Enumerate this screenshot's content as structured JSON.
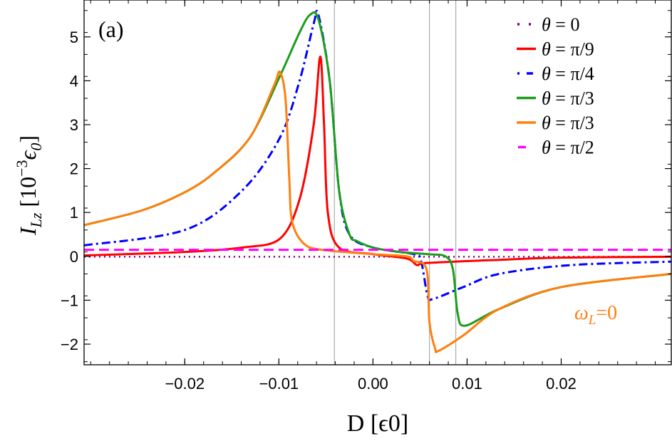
{
  "chart_data": {
    "type": "line",
    "panel_label": "(a)",
    "xlabel": "D [ϵ0]",
    "xlabel_main": "D [",
    "xlabel_sym": "ϵ",
    "xlabel_sub": "0",
    "xlabel_end": "]",
    "ylabel_main": "I",
    "ylabel_sub": "Lz",
    "ylabel_bracket": " [10",
    "ylabel_exp": "−3",
    "ylabel_unit": "ϵ",
    "ylabel_unit_sub": "0",
    "ylabel_close": "]",
    "xlim": [
      -0.0307,
      0.0317
    ],
    "ylim": [
      -2.47,
      5.84
    ],
    "xticks": [
      -0.02,
      -0.01,
      0.0,
      0.01,
      0.02
    ],
    "xtick_labels": [
      "−0.02",
      "−0.01",
      "0.00",
      "0.01",
      "0.02"
    ],
    "yticks": [
      -2,
      -1,
      0,
      1,
      2,
      3,
      4,
      5
    ],
    "ytick_labels": [
      "−2",
      "−1",
      "0",
      "1",
      "2",
      "3",
      "4",
      "5"
    ],
    "vertical_lines": [
      -0.0041,
      0.006,
      0.0088
    ],
    "grid": false,
    "legend_placement": "top-right",
    "annotation": {
      "text_main": "ω",
      "text_sub": "L",
      "text_end": "=0",
      "x": 0.0228,
      "y": -1.3,
      "color": "#ff7f0e"
    },
    "series": [
      {
        "name": "θ = 0",
        "color": "#800080",
        "dash": "dotted",
        "x": [
          -0.0307,
          0.0317
        ],
        "y": [
          -0.01,
          -0.01
        ]
      },
      {
        "name": "θ = π/9",
        "color": "#ff0000",
        "dash": "solid",
        "x": [
          -0.0307,
          -0.02,
          -0.0139,
          -0.0099,
          -0.0078,
          -0.0063,
          -0.0056,
          -0.0052,
          -0.0048,
          -0.0036,
          0.0,
          0.0036,
          0.0047,
          0.0058,
          0.0134,
          0.02,
          0.0317
        ],
        "y": [
          0.02,
          0.1,
          0.2,
          0.4,
          1.3,
          3.0,
          4.55,
          3.0,
          1.0,
          0.2,
          0.05,
          -0.05,
          -0.2,
          -0.15,
          -0.08,
          -0.03,
          -0.01
        ]
      },
      {
        "name": "θ = π/4",
        "color": "#0000ff",
        "dash": "dashdot",
        "x": [
          -0.0307,
          -0.02,
          -0.0139,
          -0.0099,
          -0.0078,
          -0.0063,
          -0.0058,
          -0.0046,
          -0.0036,
          -0.0025,
          0.0,
          0.0043,
          0.0051,
          0.0058,
          0.0064,
          0.0096,
          0.0134,
          0.021,
          0.0317
        ],
        "y": [
          0.25,
          0.6,
          1.5,
          2.7,
          4.0,
          5.3,
          5.5,
          4.0,
          1.5,
          0.5,
          0.2,
          0.05,
          -0.1,
          -0.9,
          -0.97,
          -0.7,
          -0.4,
          -0.2,
          -0.12
        ]
      },
      {
        "name": "θ = π/3",
        "color": "#1a9e1a",
        "dash": "solid",
        "x": [
          -0.0307,
          -0.0245,
          -0.02,
          -0.0169,
          -0.0131,
          -0.0099,
          -0.0078,
          -0.0067,
          -0.0058,
          -0.0046,
          -0.0036,
          -0.0025,
          -0.0017,
          0.0,
          0.0028,
          0.0058,
          0.0077,
          0.0085,
          0.009,
          0.0098,
          0.0134,
          0.02,
          0.0317
        ],
        "y": [
          0.71,
          1.05,
          1.46,
          1.9,
          2.7,
          4.1,
          5.1,
          5.5,
          5.4,
          4.0,
          1.5,
          0.5,
          0.35,
          0.2,
          0.1,
          0.05,
          0.0,
          -0.3,
          -1.3,
          -1.58,
          -1.2,
          -0.7,
          -0.4
        ]
      },
      {
        "name": "θ = π/3",
        "color": "#ff7f0e",
        "dash": "solid",
        "x": [
          -0.0307,
          -0.0245,
          -0.02,
          -0.0169,
          -0.0131,
          -0.0105,
          -0.0099,
          -0.0093,
          -0.0089,
          -0.0086,
          -0.0074,
          -0.0055,
          0.0,
          0.0036,
          0.0043,
          0.0057,
          0.006,
          0.0066,
          0.007,
          0.0096,
          0.0134,
          0.02,
          0.0317
        ],
        "y": [
          0.71,
          1.05,
          1.46,
          1.9,
          2.7,
          3.9,
          4.2,
          3.6,
          1.8,
          0.8,
          0.3,
          0.15,
          0.05,
          0.0,
          -0.1,
          -0.3,
          -1.5,
          -2.1,
          -2.15,
          -1.8,
          -1.2,
          -0.7,
          -0.4
        ]
      },
      {
        "name": "θ = π/2",
        "color": "#ff00ff",
        "dash": "dashed",
        "x": [
          -0.0307,
          0.0317
        ],
        "y": [
          0.15,
          0.15
        ]
      }
    ],
    "legend_labels": [
      {
        "theta": "θ",
        "rest": " = 0"
      },
      {
        "theta": "θ",
        "rest": " = π/9"
      },
      {
        "theta": "θ",
        "rest": " = π/4"
      },
      {
        "theta": "θ",
        "rest": " = π/3"
      },
      {
        "theta": "θ",
        "rest": " = π/3"
      },
      {
        "theta": "θ",
        "rest": " = π/2"
      }
    ]
  }
}
